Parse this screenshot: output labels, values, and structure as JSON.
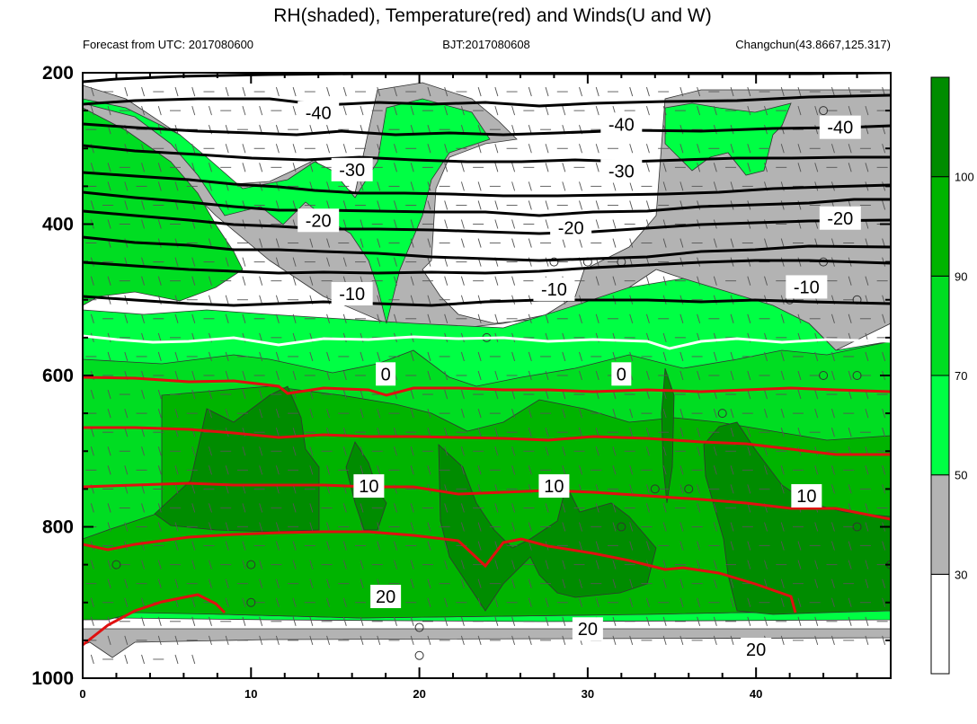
{
  "chart_data": {
    "type": "contour",
    "title": "RH(shaded), Temperature(red) and Winds(U and W)",
    "left_subtitle": "Forecast from UTC: 2017080600",
    "center_subtitle": "BJT:2017080608",
    "right_subtitle": "Changchun(43.8667,125.317)",
    "x_ticks": [
      0,
      10,
      20,
      30,
      40
    ],
    "xlim": [
      0,
      48
    ],
    "y_ticks": [
      200,
      400,
      600,
      800,
      1000
    ],
    "ylim": [
      1000,
      200
    ],
    "colorbar": {
      "levels": [
        30,
        50,
        70,
        90,
        100
      ],
      "colors": [
        "#ffffff",
        "#b3b3b3",
        "#00ff44",
        "#00dd22",
        "#00b400",
        "#008c00"
      ]
    },
    "line_colors": {
      "temperature": "#e01010",
      "negative": "#000000",
      "zero": "#ffffff"
    },
    "temperature_labels": [
      {
        "text": "-40",
        "x": 14,
        "p": 253
      },
      {
        "text": "-40",
        "x": 32,
        "p": 268
      },
      {
        "text": "-40",
        "x": 45,
        "p": 272
      },
      {
        "text": "-30",
        "x": 16,
        "p": 328
      },
      {
        "text": "-30",
        "x": 32,
        "p": 330
      },
      {
        "text": "-20",
        "x": 14,
        "p": 395
      },
      {
        "text": "-20",
        "x": 29,
        "p": 405
      },
      {
        "text": "-20",
        "x": 45,
        "p": 392
      },
      {
        "text": "-10",
        "x": 16,
        "p": 492
      },
      {
        "text": "-10",
        "x": 28,
        "p": 486
      },
      {
        "text": "-10",
        "x": 43,
        "p": 483
      },
      {
        "text": "0",
        "x": 18,
        "p": 598
      },
      {
        "text": "0",
        "x": 32,
        "p": 598
      },
      {
        "text": "10",
        "x": 17,
        "p": 746
      },
      {
        "text": "10",
        "x": 28,
        "p": 746
      },
      {
        "text": "10",
        "x": 43,
        "p": 759
      },
      {
        "text": "20",
        "x": 18,
        "p": 892
      },
      {
        "text": "20",
        "x": 30,
        "p": 935
      },
      {
        "text": "20",
        "x": 40,
        "p": 962
      }
    ]
  }
}
